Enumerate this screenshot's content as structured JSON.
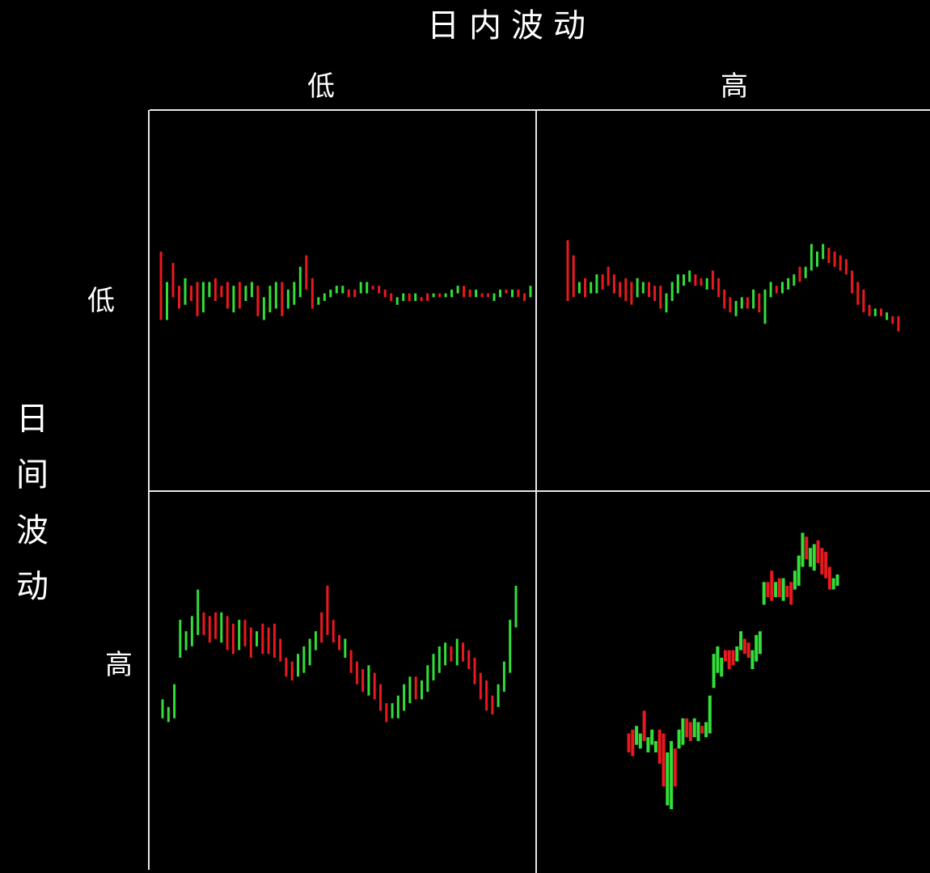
{
  "labels": {
    "title": "日内波动",
    "col_low": "低",
    "col_high": "高",
    "row_title": "日间波动",
    "row_low": "低",
    "row_high": "高"
  },
  "colors": {
    "up": "#33dd3a",
    "down": "#e8191f",
    "grid": "#e6e6e6",
    "background": "#000000"
  },
  "chart_data": [
    {
      "type": "candlestick-range",
      "panel": "intraday-low / interday-low",
      "ylim": [
        0,
        100
      ],
      "bars": [
        [
          45,
          63,
          "d"
        ],
        [
          45,
          55,
          "u"
        ],
        [
          51,
          60,
          "d"
        ],
        [
          48,
          54,
          "d"
        ],
        [
          49,
          56,
          "u"
        ],
        [
          50,
          54,
          "d"
        ],
        [
          46,
          55,
          "d"
        ],
        [
          47,
          55,
          "u"
        ],
        [
          51,
          55,
          "u"
        ],
        [
          50,
          56,
          "d"
        ],
        [
          51,
          54,
          "d"
        ],
        [
          48,
          55,
          "d"
        ],
        [
          47,
          54,
          "u"
        ],
        [
          48,
          55,
          "d"
        ],
        [
          50,
          54,
          "u"
        ],
        [
          51,
          55,
          "u"
        ],
        [
          46,
          54,
          "d"
        ],
        [
          45,
          51,
          "u"
        ],
        [
          47,
          54,
          "u"
        ],
        [
          48,
          55,
          "u"
        ],
        [
          46,
          55,
          "d"
        ],
        [
          48,
          53,
          "u"
        ],
        [
          49,
          55,
          "u"
        ],
        [
          51,
          59,
          "u"
        ],
        [
          53,
          62,
          "d"
        ],
        [
          48,
          56,
          "d"
        ],
        [
          49,
          51,
          "u"
        ],
        [
          50,
          52,
          "u"
        ],
        [
          51,
          53,
          "u"
        ],
        [
          52,
          54,
          "u"
        ],
        [
          52,
          54,
          "u"
        ],
        [
          51,
          53,
          "d"
        ],
        [
          51,
          53,
          "d"
        ],
        [
          52,
          55,
          "u"
        ],
        [
          52,
          55,
          "u"
        ],
        [
          53,
          54,
          "d"
        ],
        [
          52,
          54,
          "d"
        ],
        [
          51,
          53,
          "d"
        ],
        [
          50,
          52,
          "d"
        ],
        [
          49,
          51,
          "u"
        ],
        [
          50,
          52,
          "u"
        ],
        [
          50,
          52,
          "d"
        ],
        [
          50,
          52,
          "u"
        ],
        [
          50,
          51,
          "d"
        ],
        [
          50,
          52,
          "d"
        ],
        [
          51,
          52,
          "u"
        ],
        [
          51,
          52,
          "d"
        ],
        [
          51,
          52,
          "u"
        ],
        [
          51,
          53,
          "u"
        ],
        [
          52,
          54,
          "u"
        ],
        [
          51,
          54,
          "d"
        ],
        [
          51,
          53,
          "d"
        ],
        [
          51,
          53,
          "u"
        ],
        [
          51,
          52,
          "d"
        ],
        [
          51,
          52,
          "d"
        ],
        [
          50,
          52,
          "u"
        ],
        [
          51,
          53,
          "u"
        ],
        [
          52,
          53,
          "d"
        ],
        [
          51,
          53,
          "u"
        ],
        [
          51,
          53,
          "d"
        ],
        [
          50,
          52,
          "d"
        ],
        [
          51,
          54,
          "u"
        ]
      ]
    },
    {
      "type": "candlestick-range",
      "panel": "intraday-high / interday-low",
      "ylim": [
        0,
        100
      ],
      "bars": [
        [
          50,
          66,
          "d"
        ],
        [
          51,
          62,
          "d"
        ],
        [
          52,
          55,
          "u"
        ],
        [
          51,
          56,
          "d"
        ],
        [
          52,
          55,
          "u"
        ],
        [
          52,
          57,
          "u"
        ],
        [
          53,
          57,
          "d"
        ],
        [
          54,
          59,
          "d"
        ],
        [
          52,
          57,
          "d"
        ],
        [
          51,
          55,
          "d"
        ],
        [
          50,
          56,
          "d"
        ],
        [
          49,
          55,
          "d"
        ],
        [
          51,
          56,
          "u"
        ],
        [
          52,
          55,
          "u"
        ],
        [
          51,
          55,
          "d"
        ],
        [
          50,
          54,
          "d"
        ],
        [
          48,
          54,
          "d"
        ],
        [
          47,
          52,
          "u"
        ],
        [
          50,
          55,
          "u"
        ],
        [
          52,
          57,
          "u"
        ],
        [
          54,
          57,
          "u"
        ],
        [
          55,
          58,
          "u"
        ],
        [
          54,
          57,
          "d"
        ],
        [
          54,
          56,
          "d"
        ],
        [
          53,
          56,
          "u"
        ],
        [
          53,
          58,
          "d"
        ],
        [
          51,
          56,
          "d"
        ],
        [
          48,
          53,
          "d"
        ],
        [
          47,
          51,
          "d"
        ],
        [
          46,
          50,
          "u"
        ],
        [
          48,
          51,
          "u"
        ],
        [
          48,
          51,
          "d"
        ],
        [
          48,
          53,
          "u"
        ],
        [
          47,
          52,
          "d"
        ],
        [
          44,
          53,
          "u"
        ],
        [
          51,
          55,
          "u"
        ],
        [
          52,
          54,
          "d"
        ],
        [
          52,
          55,
          "u"
        ],
        [
          53,
          56,
          "u"
        ],
        [
          54,
          57,
          "u"
        ],
        [
          55,
          59,
          "d"
        ],
        [
          56,
          59,
          "u"
        ],
        [
          58,
          65,
          "u"
        ],
        [
          59,
          63,
          "u"
        ],
        [
          61,
          65,
          "u"
        ],
        [
          60,
          64,
          "d"
        ],
        [
          59,
          63,
          "d"
        ],
        [
          58,
          62,
          "d"
        ],
        [
          57,
          61,
          "d"
        ],
        [
          52,
          58,
          "d"
        ],
        [
          49,
          55,
          "d"
        ],
        [
          47,
          53,
          "d"
        ],
        [
          46,
          49,
          "d"
        ],
        [
          46,
          48,
          "u"
        ],
        [
          46,
          48,
          "d"
        ],
        [
          45,
          47,
          "u"
        ],
        [
          44,
          46,
          "d"
        ],
        [
          42,
          46,
          "d"
        ]
      ]
    },
    {
      "type": "candlestick-range",
      "panel": "intraday-low / interday-high",
      "ylim": [
        0,
        100
      ],
      "bars": [
        [
          40,
          45,
          "u"
        ],
        [
          39,
          43,
          "u"
        ],
        [
          40,
          49,
          "u"
        ],
        [
          56,
          66,
          "u"
        ],
        [
          58,
          63,
          "u"
        ],
        [
          59,
          67,
          "u"
        ],
        [
          62,
          74,
          "u"
        ],
        [
          62,
          68,
          "d"
        ],
        [
          60,
          67,
          "d"
        ],
        [
          61,
          68,
          "d"
        ],
        [
          60,
          68,
          "u"
        ],
        [
          58,
          67,
          "d"
        ],
        [
          57,
          65,
          "d"
        ],
        [
          58,
          66,
          "u"
        ],
        [
          59,
          66,
          "d"
        ],
        [
          56,
          64,
          "d"
        ],
        [
          59,
          63,
          "u"
        ],
        [
          57,
          65,
          "d"
        ],
        [
          57,
          64,
          "d"
        ],
        [
          56,
          65,
          "d"
        ],
        [
          55,
          61,
          "d"
        ],
        [
          51,
          56,
          "d"
        ],
        [
          50,
          55,
          "d"
        ],
        [
          51,
          57,
          "u"
        ],
        [
          52,
          59,
          "u"
        ],
        [
          54,
          61,
          "u"
        ],
        [
          58,
          63,
          "u"
        ],
        [
          60,
          68,
          "d"
        ],
        [
          62,
          75,
          "d"
        ],
        [
          60,
          66,
          "d"
        ],
        [
          58,
          62,
          "d"
        ],
        [
          56,
          61,
          "u"
        ],
        [
          52,
          58,
          "d"
        ],
        [
          49,
          55,
          "d"
        ],
        [
          47,
          53,
          "d"
        ],
        [
          46,
          54,
          "u"
        ],
        [
          45,
          52,
          "d"
        ],
        [
          42,
          49,
          "d"
        ],
        [
          39,
          44,
          "d"
        ],
        [
          40,
          44,
          "u"
        ],
        [
          40,
          46,
          "u"
        ],
        [
          42,
          49,
          "u"
        ],
        [
          44,
          51,
          "u"
        ],
        [
          45,
          51,
          "d"
        ],
        [
          45,
          50,
          "u"
        ],
        [
          47,
          54,
          "u"
        ],
        [
          50,
          57,
          "u"
        ],
        [
          52,
          59,
          "u"
        ],
        [
          54,
          60,
          "u"
        ],
        [
          55,
          59,
          "d"
        ],
        [
          54,
          61,
          "u"
        ],
        [
          55,
          60,
          "d"
        ],
        [
          53,
          58,
          "d"
        ],
        [
          49,
          56,
          "d"
        ],
        [
          45,
          52,
          "d"
        ],
        [
          42,
          50,
          "d"
        ],
        [
          41,
          46,
          "d"
        ],
        [
          43,
          49,
          "u"
        ],
        [
          47,
          55,
          "u"
        ],
        [
          52,
          66,
          "u"
        ],
        [
          64,
          75,
          "u"
        ]
      ]
    },
    {
      "type": "candlestick-range",
      "panel": "intraday-high / interday-high",
      "ylim": [
        0,
        100
      ],
      "bars": [
        [
          31,
          36,
          "d"
        ],
        [
          30,
          37,
          "d"
        ],
        [
          33,
          38,
          "u"
        ],
        [
          32,
          36,
          "u"
        ],
        [
          34,
          42,
          "d"
        ],
        [
          31,
          35,
          "u"
        ],
        [
          33,
          37,
          "u"
        ],
        [
          31,
          34,
          "u"
        ],
        [
          28,
          37,
          "d"
        ],
        [
          22,
          36,
          "d"
        ],
        [
          17,
          31,
          "u"
        ],
        [
          16,
          34,
          "u"
        ],
        [
          22,
          32,
          "d"
        ],
        [
          32,
          37,
          "u"
        ],
        [
          33,
          40,
          "u"
        ],
        [
          35,
          40,
          "d"
        ],
        [
          34,
          39,
          "d"
        ],
        [
          35,
          40,
          "u"
        ],
        [
          34,
          39,
          "u"
        ],
        [
          36,
          38,
          "d"
        ],
        [
          35,
          39,
          "u"
        ],
        [
          36,
          46,
          "u"
        ],
        [
          48,
          57,
          "u"
        ],
        [
          52,
          59,
          "u"
        ],
        [
          51,
          56,
          "u"
        ],
        [
          55,
          58,
          "d"
        ],
        [
          53,
          58,
          "d"
        ],
        [
          54,
          58,
          "d"
        ],
        [
          55,
          59,
          "u"
        ],
        [
          58,
          63,
          "u"
        ],
        [
          57,
          61,
          "d"
        ],
        [
          56,
          60,
          "d"
        ],
        [
          53,
          58,
          "u"
        ],
        [
          55,
          62,
          "u"
        ],
        [
          57,
          63,
          "u"
        ],
        [
          70,
          76,
          "u"
        ],
        [
          72,
          76,
          "d"
        ],
        [
          71,
          79,
          "d"
        ],
        [
          72,
          76,
          "u"
        ],
        [
          72,
          77,
          "d"
        ],
        [
          71,
          77,
          "u"
        ],
        [
          72,
          75,
          "d"
        ],
        [
          70,
          76,
          "d"
        ],
        [
          74,
          79,
          "u"
        ],
        [
          75,
          83,
          "u"
        ],
        [
          80,
          89,
          "u"
        ],
        [
          82,
          88,
          "d"
        ],
        [
          80,
          85,
          "u"
        ],
        [
          79,
          86,
          "u"
        ],
        [
          81,
          87,
          "d"
        ],
        [
          78,
          85,
          "d"
        ],
        [
          77,
          84,
          "d"
        ],
        [
          74,
          80,
          "d"
        ],
        [
          74,
          77,
          "u"
        ],
        [
          75,
          78,
          "u"
        ]
      ]
    }
  ]
}
